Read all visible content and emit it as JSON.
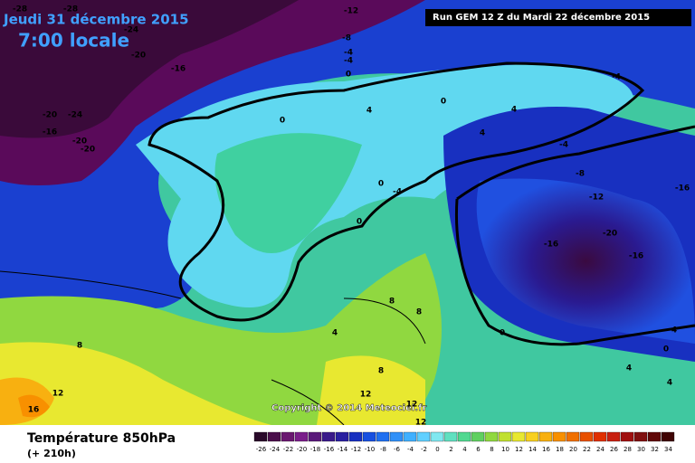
{
  "header": {
    "date": "Jeudi 31 décembre 2015",
    "time": "7:00 locale",
    "run": "Run GEM 12 Z du Mardi 22 décembre 2015"
  },
  "copyright": "Copyright © 2014 Meteociel.fr",
  "footer": {
    "title": "Température 850hPa",
    "lead": "(+ 210h)"
  },
  "scale": {
    "labels": [
      -26,
      -24,
      -22,
      -20,
      -18,
      -16,
      -14,
      -12,
      -10,
      -8,
      -6,
      -4,
      -2,
      0,
      2,
      4,
      6,
      8,
      10,
      12,
      14,
      16,
      18,
      20,
      22,
      24,
      26,
      28,
      30,
      32,
      34
    ],
    "colors": [
      "#2a0a2a",
      "#4a0f4a",
      "#6a1870",
      "#7a1e8a",
      "#5a1a7a",
      "#3a1a8a",
      "#2a20a0",
      "#1830c0",
      "#1850e0",
      "#2070f0",
      "#3090f8",
      "#40b0ff",
      "#60d0ff",
      "#80e8f0",
      "#60e0c0",
      "#50d890",
      "#60d060",
      "#90d840",
      "#c0e030",
      "#e8e830",
      "#f8d020",
      "#f8b010",
      "#f89000",
      "#f07000",
      "#e85000",
      "#e03000",
      "#c82010",
      "#a01010",
      "#801010",
      "#600808",
      "#400404"
    ]
  },
  "contour_labels": [
    -28,
    -28,
    -24,
    -20,
    -16,
    -20,
    -24,
    -16,
    -20,
    -20,
    -12,
    -8,
    -4,
    -4,
    0,
    4,
    0,
    0,
    4,
    4,
    -4,
    -4,
    -8,
    -12,
    -16,
    -20,
    -16,
    -16,
    0,
    -4,
    0,
    8,
    8,
    4,
    8,
    0,
    0,
    4,
    4,
    8,
    12,
    16,
    12,
    12,
    12,
    4
  ]
}
